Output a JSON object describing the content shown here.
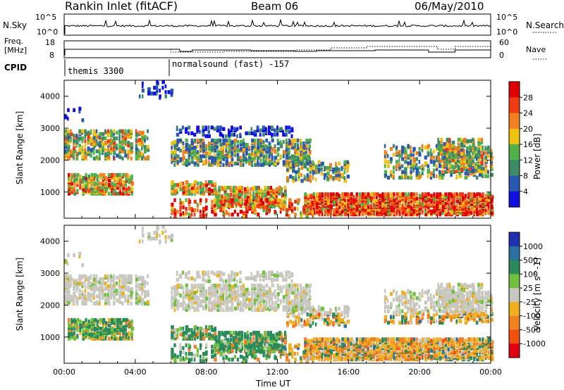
{
  "header": {
    "station": "Rankin Inlet (fitACF)",
    "beam": "Beam 06",
    "date": "06/May/2010"
  },
  "summary": {
    "nsky_label": "N.Sky",
    "nsky_top": "10^5",
    "nsky_bottom": "10^0",
    "nsearch_label": "N.Search",
    "nsearch_top": "10^5",
    "nsearch_bottom": "10^0",
    "freq_label_line1": "Freq.",
    "freq_label_line2": "[MHz]",
    "freq_top": "18",
    "freq_bottom": "8",
    "nave_label": "Nave",
    "nave_top": "60",
    "nave_bottom": "0",
    "cpid_label": "CPID",
    "cpid_1": "themis 3300",
    "cpid_2": "normalsound (fast) -157"
  },
  "colors": {
    "power_scale": [
      "#1010e0",
      "#2a58b0",
      "#3c8a66",
      "#50b04a",
      "#f0c010",
      "#f08020",
      "#f03a10",
      "#e00000"
    ],
    "velocity_scale": [
      "#e00010",
      "#f05010",
      "#f08020",
      "#f0b020",
      "#c8c8c0",
      "#70c040",
      "#2a8a5a",
      "#2a70a0",
      "#2030b0"
    ]
  },
  "chart_data": [
    {
      "type": "heatmap",
      "title": "Power",
      "ylabel": "Slant Range [km]",
      "ylim": [
        180,
        4500
      ],
      "xlim": [
        "00:00",
        "24:00"
      ],
      "yticks": [
        "1000",
        "2000",
        "3000",
        "4000"
      ],
      "colorbar_label": "Power [dB]",
      "colorbar_ticks": [
        "4",
        "8",
        "12",
        "16",
        "20",
        "24",
        "28"
      ],
      "grid": false
    },
    {
      "type": "heatmap",
      "title": "Velocity",
      "ylabel": "Slant Range [km]",
      "ylim": [
        180,
        4500
      ],
      "xlim": [
        "00:00",
        "24:00"
      ],
      "xlabel": "Time UT",
      "xticks": [
        "00:00",
        "04:00",
        "08:00",
        "12:00",
        "16:00",
        "20:00",
        "00:00"
      ],
      "yticks": [
        "1000",
        "2000",
        "3000",
        "4000"
      ],
      "colorbar_label": "Velocity [m s^-1]",
      "colorbar_ticks": [
        "1000",
        "500",
        "100",
        "25",
        "-25",
        "-100",
        "-500",
        "-1000"
      ],
      "grid": false
    }
  ]
}
